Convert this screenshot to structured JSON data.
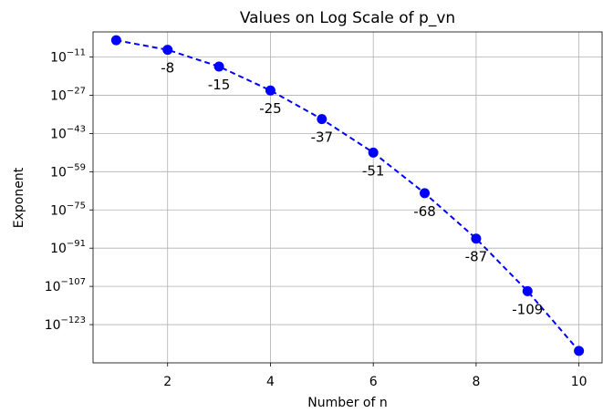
{
  "chart_data": {
    "type": "line",
    "title": "Values on Log Scale of p_vn",
    "xlabel": "Number of n",
    "ylabel": "Exponent",
    "y_scale": "log10",
    "grid": true,
    "x": [
      1,
      2,
      3,
      4,
      5,
      6,
      7,
      8,
      9,
      10
    ],
    "y_exponents": [
      -4,
      -8,
      -15,
      -25,
      -37,
      -51,
      -68,
      -87,
      -109,
      -134
    ],
    "point_labels": [
      null,
      "-8",
      "-15",
      "-25",
      "-37",
      "-51",
      "-68",
      "-87",
      "-109",
      null
    ],
    "xlim": [
      0.55,
      10.45
    ],
    "ylim_exponent": [
      -139,
      -0.5
    ],
    "x_ticks": [
      2,
      4,
      6,
      8,
      10
    ],
    "x_tick_labels": [
      "2",
      "4",
      "6",
      "8",
      "10"
    ],
    "y_tick_exponents": [
      -11,
      -27,
      -43,
      -59,
      -75,
      -91,
      -107,
      -123
    ],
    "y_tick_labels": [
      "−11",
      "−27",
      "−43",
      "−59",
      "−75",
      "−91",
      "−107",
      "−123"
    ],
    "y_tick_base": "10",
    "series_color": "#0000ff",
    "line_style": "dashed",
    "marker": "circle"
  }
}
